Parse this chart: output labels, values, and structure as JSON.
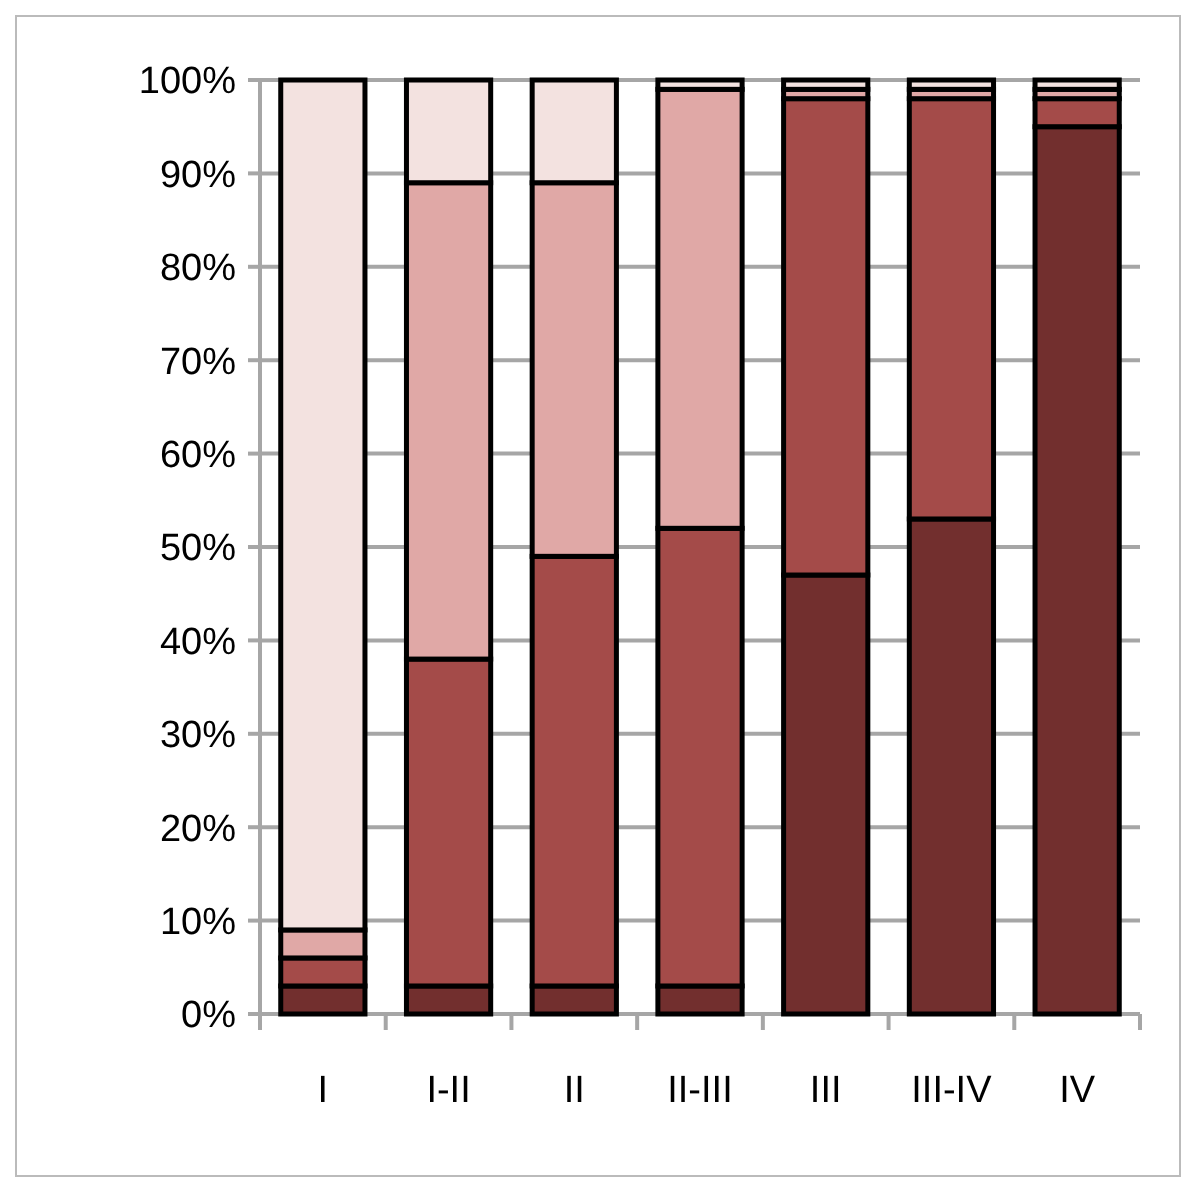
{
  "chart_data": {
    "type": "bar",
    "stacked": true,
    "categories": [
      "I",
      "I-II",
      "II",
      "II-III",
      "III",
      "III-IV",
      "IV"
    ],
    "series": [
      {
        "color": "#722f2e",
        "values": [
          3,
          3,
          3,
          3,
          47,
          53,
          95
        ]
      },
      {
        "color": "#a44b49",
        "values": [
          3,
          35,
          46,
          49,
          51,
          45,
          3
        ]
      },
      {
        "color": "#e0a8a6",
        "values": [
          3,
          51,
          40,
          47,
          1,
          1,
          1
        ]
      },
      {
        "color": "#f3e2e0",
        "values": [
          91,
          11,
          11,
          1,
          1,
          1,
          1
        ]
      }
    ],
    "ylim": [
      0,
      100
    ],
    "yticks": [
      {
        "value": 0,
        "label": "0%"
      },
      {
        "value": 10,
        "label": "10%"
      },
      {
        "value": 20,
        "label": "20%"
      },
      {
        "value": 30,
        "label": "30%"
      },
      {
        "value": 40,
        "label": "40%"
      },
      {
        "value": 50,
        "label": "50%"
      },
      {
        "value": 60,
        "label": "60%"
      },
      {
        "value": 70,
        "label": "70%"
      },
      {
        "value": 80,
        "label": "80%"
      },
      {
        "value": 90,
        "label": "90%"
      },
      {
        "value": 100,
        "label": "100%"
      }
    ],
    "grid": "y"
  }
}
